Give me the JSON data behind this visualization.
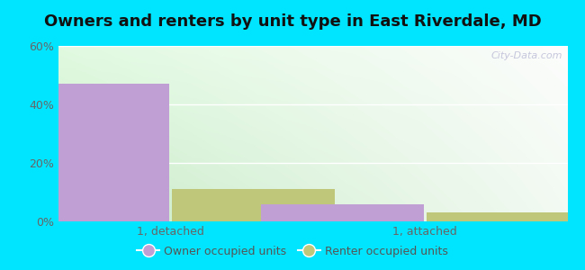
{
  "title": "Owners and renters by unit type in East Riverdale, MD",
  "categories": [
    "1, detached",
    "1, attached"
  ],
  "owner_values": [
    47,
    6
  ],
  "renter_values": [
    11,
    3
  ],
  "owner_color": "#bf9fd4",
  "renter_color": "#bfc87a",
  "ylim": [
    0,
    60
  ],
  "yticks": [
    0,
    20,
    40,
    60
  ],
  "ytick_labels": [
    "0%",
    "20%",
    "40%",
    "60%"
  ],
  "outer_bg": "#00e5ff",
  "watermark": "City-Data.com",
  "legend_labels": [
    "Owner occupied units",
    "Renter occupied units"
  ],
  "bar_width": 0.32,
  "group_positions": [
    0.25,
    0.75
  ],
  "grid_color": "#dddddd",
  "tick_color": "#666666",
  "title_fontsize": 13
}
